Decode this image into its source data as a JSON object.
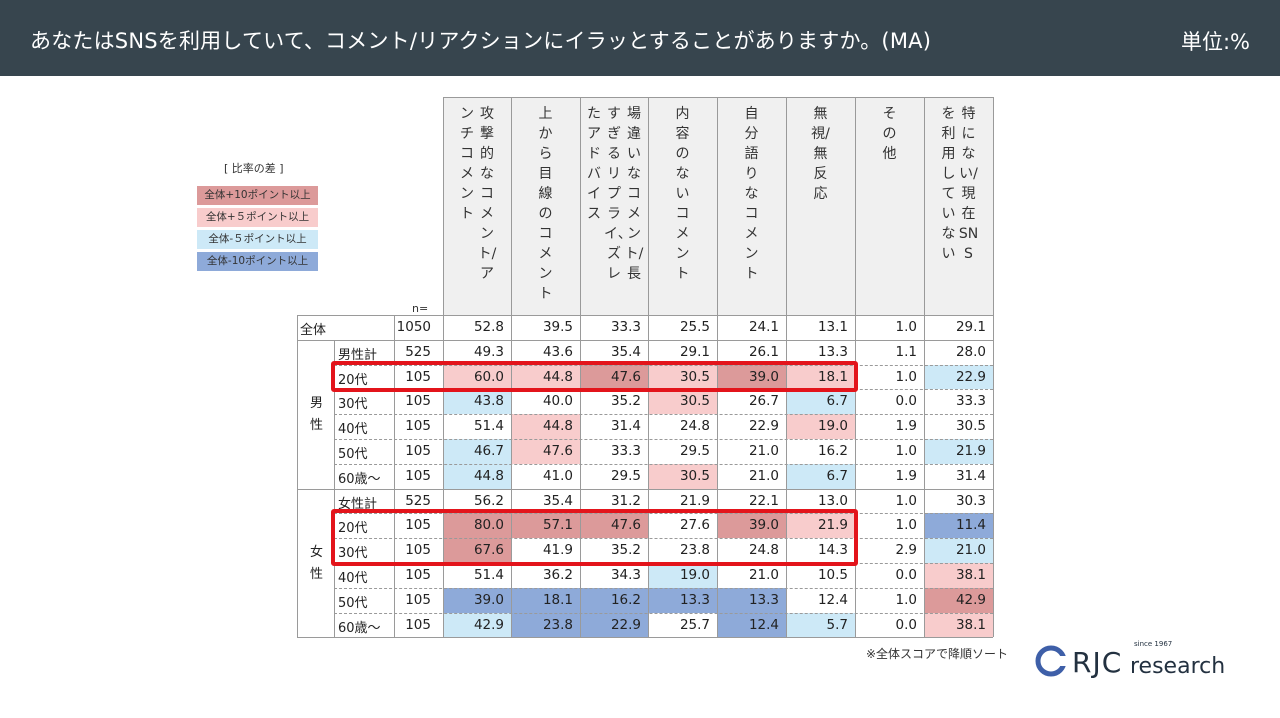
{
  "header": {
    "title": "あなたはSNSを利用していて、コメント/リアクションにイラッとすることがありますか。(MA)",
    "unit": "単位:%"
  },
  "legend": {
    "title": "[ 比率の差 ]",
    "items": [
      {
        "label": "全体+10ポイント以上",
        "color": "#dc9a9a"
      },
      {
        "label": "全体+５ポイント以上",
        "color": "#f8cccc"
      },
      {
        "label": "全体-５ポイント以上",
        "color": "#cde9f7"
      },
      {
        "label": "全体-10ポイント以上",
        "color": "#8eaad9"
      }
    ]
  },
  "chart_data": {
    "type": "table",
    "n_header": "n=",
    "columns": [
      "攻撃的なコメント/アンチコメント",
      "上から目線のコメント",
      "場違いなコメント/長すぎるリプライ、ズレたアドバイス",
      "内容のないコメント",
      "自分語りなコメント",
      "無視/無反応",
      "その他",
      "特にない/現在SNSを利用していない"
    ],
    "groups": [
      {
        "label": "",
        "rows": [
          {
            "label": "全体",
            "n": "1050",
            "values": [
              "52.8",
              "39.5",
              "33.3",
              "25.5",
              "24.1",
              "13.1",
              "1.0",
              "29.1"
            ],
            "shade": [
              0,
              0,
              0,
              0,
              0,
              0,
              0,
              0
            ]
          }
        ]
      },
      {
        "label": "男性",
        "rows": [
          {
            "label": "男性計",
            "n": "525",
            "values": [
              "49.3",
              "43.6",
              "35.4",
              "29.1",
              "26.1",
              "13.3",
              "1.1",
              "28.0"
            ],
            "shade": [
              0,
              0,
              0,
              0,
              0,
              0,
              0,
              0
            ]
          },
          {
            "label": "20代",
            "n": "105",
            "values": [
              "60.0",
              "44.8",
              "47.6",
              "30.5",
              "39.0",
              "18.1",
              "1.0",
              "22.9"
            ],
            "shade": [
              1,
              1,
              2,
              1,
              2,
              1,
              0,
              -1
            ]
          },
          {
            "label": "30代",
            "n": "105",
            "values": [
              "43.8",
              "40.0",
              "35.2",
              "30.5",
              "26.7",
              "6.7",
              "0.0",
              "33.3"
            ],
            "shade": [
              -1,
              0,
              0,
              1,
              0,
              -1,
              0,
              0
            ]
          },
          {
            "label": "40代",
            "n": "105",
            "values": [
              "51.4",
              "44.8",
              "31.4",
              "24.8",
              "22.9",
              "19.0",
              "1.9",
              "30.5"
            ],
            "shade": [
              0,
              1,
              0,
              0,
              0,
              1,
              0,
              0
            ]
          },
          {
            "label": "50代",
            "n": "105",
            "values": [
              "46.7",
              "47.6",
              "33.3",
              "29.5",
              "21.0",
              "16.2",
              "1.0",
              "21.9"
            ],
            "shade": [
              -1,
              1,
              0,
              0,
              0,
              0,
              0,
              -1
            ]
          },
          {
            "label": "60歳〜",
            "n": "105",
            "values": [
              "44.8",
              "41.0",
              "29.5",
              "30.5",
              "21.0",
              "6.7",
              "1.9",
              "31.4"
            ],
            "shade": [
              -1,
              0,
              0,
              1,
              0,
              -1,
              0,
              0
            ]
          }
        ]
      },
      {
        "label": "女性",
        "rows": [
          {
            "label": "女性計",
            "n": "525",
            "values": [
              "56.2",
              "35.4",
              "31.2",
              "21.9",
              "22.1",
              "13.0",
              "1.0",
              "30.3"
            ],
            "shade": [
              0,
              0,
              0,
              0,
              0,
              0,
              0,
              0
            ]
          },
          {
            "label": "20代",
            "n": "105",
            "values": [
              "80.0",
              "57.1",
              "47.6",
              "27.6",
              "39.0",
              "21.9",
              "1.0",
              "11.4"
            ],
            "shade": [
              2,
              2,
              2,
              0,
              2,
              1,
              0,
              -2
            ]
          },
          {
            "label": "30代",
            "n": "105",
            "values": [
              "67.6",
              "41.9",
              "35.2",
              "23.8",
              "24.8",
              "14.3",
              "2.9",
              "21.0"
            ],
            "shade": [
              2,
              0,
              0,
              0,
              0,
              0,
              0,
              -1
            ]
          },
          {
            "label": "40代",
            "n": "105",
            "values": [
              "51.4",
              "36.2",
              "34.3",
              "19.0",
              "21.0",
              "10.5",
              "0.0",
              "38.1"
            ],
            "shade": [
              0,
              0,
              0,
              -1,
              0,
              0,
              0,
              1
            ]
          },
          {
            "label": "50代",
            "n": "105",
            "values": [
              "39.0",
              "18.1",
              "16.2",
              "13.3",
              "13.3",
              "12.4",
              "1.0",
              "42.9"
            ],
            "shade": [
              -2,
              -2,
              -2,
              -2,
              -2,
              0,
              0,
              2
            ]
          },
          {
            "label": "60歳〜",
            "n": "105",
            "values": [
              "42.9",
              "23.8",
              "22.9",
              "25.7",
              "12.4",
              "5.7",
              "0.0",
              "38.1"
            ],
            "shade": [
              -1,
              -2,
              -2,
              0,
              -2,
              -1,
              0,
              1
            ]
          }
        ]
      }
    ]
  },
  "note": "※全体スコアで降順ソート",
  "logo": {
    "brand": "RJC",
    "sub": "research",
    "since": "since 1967"
  }
}
